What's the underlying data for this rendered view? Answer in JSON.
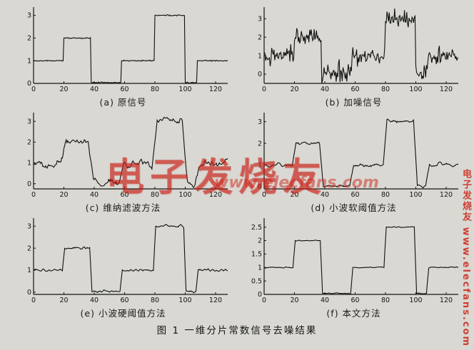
{
  "page": {
    "figure_caption": "图 1  一维分片常数信号去噪结果"
  },
  "watermark": {
    "center_text": "电子发烧友",
    "center_url": "www.elecfans.com",
    "side_text": "电子发烧友 www.elecfans.com",
    "color": "#cc2218"
  },
  "chart_data": [
    {
      "type": "line",
      "label": "(a) 原信号",
      "xlim": [
        0,
        128
      ],
      "ylim": [
        0,
        3.3
      ],
      "x_ticks": [
        0,
        20,
        40,
        60,
        80,
        100,
        120
      ],
      "y_ticks": [
        0,
        1,
        2,
        3
      ],
      "segments": [
        [
          0,
          20,
          1
        ],
        [
          20,
          38,
          2
        ],
        [
          38,
          58,
          0.04
        ],
        [
          58,
          80,
          1
        ],
        [
          80,
          100,
          3
        ],
        [
          100,
          108,
          0.04
        ],
        [
          108,
          128,
          1
        ]
      ],
      "noise": 0.012,
      "smooth": 0,
      "seed": 11
    },
    {
      "type": "line",
      "label": "(b) 加噪信号",
      "xlim": [
        0,
        128
      ],
      "ylim": [
        -0.5,
        3.55
      ],
      "x_ticks": [
        0,
        20,
        40,
        60,
        80,
        100,
        120
      ],
      "y_ticks": [
        0,
        1,
        2,
        3
      ],
      "segments": [
        [
          0,
          20,
          1
        ],
        [
          20,
          38,
          2
        ],
        [
          38,
          58,
          0.04
        ],
        [
          58,
          80,
          1
        ],
        [
          80,
          100,
          3
        ],
        [
          100,
          108,
          0.04
        ],
        [
          108,
          128,
          1
        ]
      ],
      "noise": 0.23,
      "smooth": 0,
      "seed": 47
    },
    {
      "type": "line",
      "label": "(c) 维纳滤波方法",
      "xlim": [
        0,
        128
      ],
      "ylim": [
        -0.25,
        3.35
      ],
      "x_ticks": [
        0,
        20,
        40,
        60,
        80,
        100,
        120
      ],
      "y_ticks": [
        0,
        1,
        2,
        3
      ],
      "segments": [
        [
          0,
          20,
          1
        ],
        [
          20,
          38,
          2
        ],
        [
          38,
          58,
          0.04
        ],
        [
          58,
          80,
          1
        ],
        [
          80,
          100,
          3
        ],
        [
          100,
          108,
          0.04
        ],
        [
          108,
          128,
          1
        ]
      ],
      "noise": 0.3,
      "smooth": 3,
      "seed": 83
    },
    {
      "type": "line",
      "label": "(d) 小波软阈值方法",
      "xlim": [
        0,
        128
      ],
      "ylim": [
        -0.1,
        3.35
      ],
      "x_ticks": [
        0,
        20,
        40,
        60,
        80,
        100,
        120
      ],
      "y_ticks": [
        0,
        1,
        2,
        3
      ],
      "segments": [
        [
          0,
          20,
          1
        ],
        [
          20,
          38,
          2
        ],
        [
          38,
          58,
          0.04
        ],
        [
          58,
          80,
          1
        ],
        [
          80,
          100,
          3
        ],
        [
          100,
          108,
          0.04
        ],
        [
          108,
          128,
          1
        ]
      ],
      "noise": 0.09,
      "smooth": 2,
      "seed": 129
    },
    {
      "type": "line",
      "label": "(e) 小波硬阈值方法",
      "xlim": [
        0,
        128
      ],
      "ylim": [
        -0.1,
        3.3
      ],
      "x_ticks": [
        0,
        20,
        40,
        60,
        80,
        100,
        120
      ],
      "y_ticks": [
        0,
        1,
        2,
        3
      ],
      "segments": [
        [
          0,
          20,
          1
        ],
        [
          20,
          38,
          2
        ],
        [
          38,
          58,
          0.04
        ],
        [
          58,
          80,
          1
        ],
        [
          80,
          100,
          3
        ],
        [
          100,
          108,
          0.04
        ],
        [
          108,
          128,
          1
        ]
      ],
      "noise": 0.05,
      "smooth": 1,
      "seed": 211
    },
    {
      "type": "line",
      "label": "(f) 本文方法",
      "xlim": [
        0,
        128
      ],
      "ylim": [
        0,
        2.78
      ],
      "x_ticks": [
        0,
        20,
        40,
        60,
        80,
        100,
        120
      ],
      "y_ticks": [
        0,
        0.5,
        1,
        1.5,
        2,
        2.5
      ],
      "segments": [
        [
          0,
          20,
          1
        ],
        [
          20,
          38,
          2
        ],
        [
          38,
          58,
          0.04
        ],
        [
          58,
          80,
          1
        ],
        [
          80,
          100,
          2.5
        ],
        [
          100,
          108,
          0.04
        ],
        [
          108,
          128,
          1
        ]
      ],
      "noise": 0.018,
      "smooth": 1,
      "seed": 307
    }
  ]
}
